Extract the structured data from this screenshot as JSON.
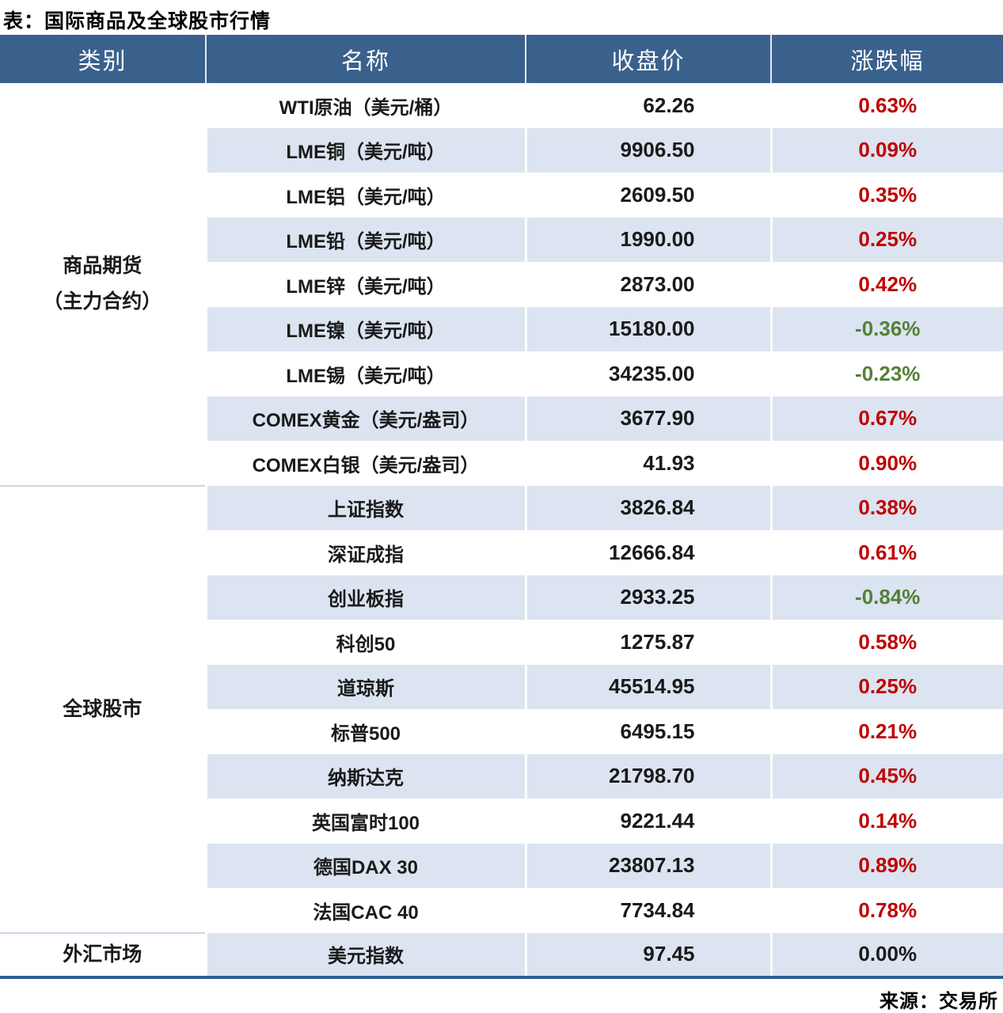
{
  "title": "表：国际商品及全球股市行情",
  "source": "来源：交易所",
  "colors": {
    "header_bg": "#3A618C",
    "header_text": "#FFFFFF",
    "stripe": "#DBE4F0",
    "up": "#C00000",
    "down": "#538135",
    "flat": "#1A1A1A",
    "bottom_border": "#315E92"
  },
  "table": {
    "headers": [
      "类别",
      "名称",
      "收盘价",
      "涨跌幅"
    ],
    "groups": [
      {
        "category": "商品期货\n（主力合约）",
        "rows": [
          {
            "name": "WTI原油（美元/桶）",
            "close": "62.26",
            "change": "0.63%",
            "dir": "up"
          },
          {
            "name": "LME铜（美元/吨）",
            "close": "9906.50",
            "change": "0.09%",
            "dir": "up"
          },
          {
            "name": "LME铝（美元/吨）",
            "close": "2609.50",
            "change": "0.35%",
            "dir": "up"
          },
          {
            "name": "LME铅（美元/吨）",
            "close": "1990.00",
            "change": "0.25%",
            "dir": "up"
          },
          {
            "name": "LME锌（美元/吨）",
            "close": "2873.00",
            "change": "0.42%",
            "dir": "up"
          },
          {
            "name": "LME镍（美元/吨）",
            "close": "15180.00",
            "change": "-0.36%",
            "dir": "down"
          },
          {
            "name": "LME锡（美元/吨）",
            "close": "34235.00",
            "change": "-0.23%",
            "dir": "down"
          },
          {
            "name": "COMEX黄金（美元/盎司）",
            "close": "3677.90",
            "change": "0.67%",
            "dir": "up"
          },
          {
            "name": "COMEX白银（美元/盎司）",
            "close": "41.93",
            "change": "0.90%",
            "dir": "up"
          }
        ]
      },
      {
        "category": "全球股市",
        "rows": [
          {
            "name": "上证指数",
            "close": "3826.84",
            "change": "0.38%",
            "dir": "up"
          },
          {
            "name": "深证成指",
            "close": "12666.84",
            "change": "0.61%",
            "dir": "up"
          },
          {
            "name": "创业板指",
            "close": "2933.25",
            "change": "-0.84%",
            "dir": "down"
          },
          {
            "name": "科创50",
            "close": "1275.87",
            "change": "0.58%",
            "dir": "up"
          },
          {
            "name": "道琼斯",
            "close": "45514.95",
            "change": "0.25%",
            "dir": "up"
          },
          {
            "name": "标普500",
            "close": "6495.15",
            "change": "0.21%",
            "dir": "up"
          },
          {
            "name": "纳斯达克",
            "close": "21798.70",
            "change": "0.45%",
            "dir": "up"
          },
          {
            "name": "英国富时100",
            "close": "9221.44",
            "change": "0.14%",
            "dir": "up"
          },
          {
            "name": "德国DAX 30",
            "close": "23807.13",
            "change": "0.89%",
            "dir": "up"
          },
          {
            "name": "法国CAC 40",
            "close": "7734.84",
            "change": "0.78%",
            "dir": "up"
          }
        ]
      },
      {
        "category": "外汇市场",
        "rows": [
          {
            "name": "美元指数",
            "close": "97.45",
            "change": "0.00%",
            "dir": "flat"
          }
        ]
      }
    ]
  }
}
